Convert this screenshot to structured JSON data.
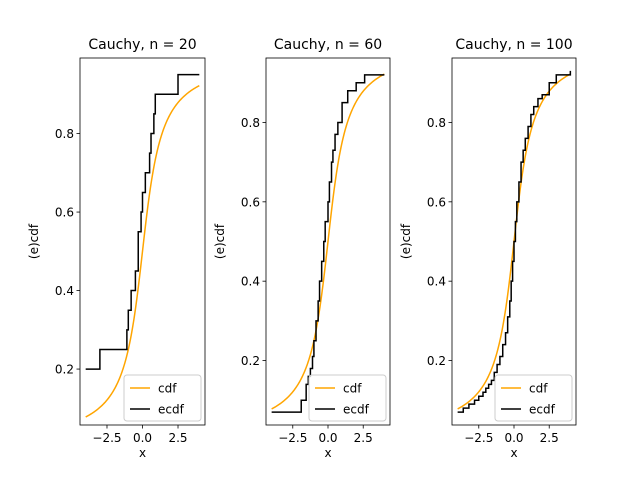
{
  "figure": {
    "background": "#ffffff",
    "colors": {
      "cdf": "#ffa500",
      "ecdf": "#000000",
      "axes": "#000000"
    }
  },
  "chart_data": [
    {
      "type": "line",
      "title": "Cauchy, n = 20",
      "xlabel": "x",
      "ylabel": "(e)cdf",
      "xlim": [
        -4.4,
        4.4
      ],
      "ylim": [
        0.0575,
        0.9925
      ],
      "xticks": [
        -2.5,
        0.0,
        2.5
      ],
      "xtick_labels": [
        "−2.5",
        "0.0",
        "2.5"
      ],
      "yticks": [
        0.2,
        0.4,
        0.6,
        0.8
      ],
      "ytick_labels": [
        "0.2",
        "0.4",
        "0.6",
        "0.8"
      ],
      "legend": {
        "position": "lower-right",
        "entries": [
          "cdf",
          "ecdf"
        ]
      },
      "grid": false,
      "cdf_x_range": [
        -4.0,
        4.0
      ],
      "ecdf": {
        "x": [
          -4.0,
          -3.0,
          -1.1,
          -1.0,
          -0.8,
          -0.5,
          -0.3,
          -0.1,
          0.0,
          0.2,
          0.5,
          0.6,
          0.8,
          0.9,
          2.5,
          4.0
        ],
        "y": [
          0.2,
          0.25,
          0.3,
          0.35,
          0.4,
          0.45,
          0.55,
          0.6,
          0.65,
          0.7,
          0.75,
          0.8,
          0.85,
          0.9,
          0.95,
          0.95
        ]
      }
    },
    {
      "type": "line",
      "title": "Cauchy, n = 60",
      "xlabel": "x",
      "ylabel": "(e)cdf",
      "xlim": [
        -4.4,
        4.4
      ],
      "ylim": [
        0.0375,
        0.9625
      ],
      "xticks": [
        -2.5,
        0.0,
        2.5
      ],
      "xtick_labels": [
        "−2.5",
        "0.0",
        "2.5"
      ],
      "yticks": [
        0.2,
        0.4,
        0.6,
        0.8
      ],
      "ytick_labels": [
        "0.2",
        "0.4",
        "0.6",
        "0.8"
      ],
      "legend": {
        "position": "lower-right",
        "entries": [
          "cdf",
          "ecdf"
        ]
      },
      "grid": false,
      "cdf_x_range": [
        -4.0,
        4.0
      ],
      "ecdf": {
        "x": [
          -4.0,
          -1.9,
          -1.55,
          -1.4,
          -1.25,
          -1.1,
          -1.0,
          -0.85,
          -0.7,
          -0.6,
          -0.45,
          -0.3,
          -0.2,
          0.0,
          0.1,
          0.25,
          0.35,
          0.5,
          0.7,
          1.0,
          1.4,
          2.0,
          2.6,
          4.0
        ],
        "y": [
          0.07,
          0.1,
          0.14,
          0.16,
          0.18,
          0.21,
          0.25,
          0.3,
          0.35,
          0.4,
          0.45,
          0.5,
          0.55,
          0.6,
          0.65,
          0.7,
          0.73,
          0.77,
          0.8,
          0.85,
          0.88,
          0.9,
          0.92,
          0.92
        ]
      }
    },
    {
      "type": "line",
      "title": "Cauchy, n = 100",
      "xlabel": "x",
      "ylabel": "(e)cdf",
      "xlim": [
        -4.4,
        4.4
      ],
      "ylim": [
        0.0375,
        0.9625
      ],
      "xticks": [
        -2.5,
        0.0,
        2.5
      ],
      "xtick_labels": [
        "−2.5",
        "0.0",
        "2.5"
      ],
      "yticks": [
        0.2,
        0.4,
        0.6,
        0.8
      ],
      "ytick_labels": [
        "0.2",
        "0.4",
        "0.6",
        "0.8"
      ],
      "legend": {
        "position": "lower-right",
        "entries": [
          "cdf",
          "ecdf"
        ]
      },
      "grid": false,
      "cdf_x_range": [
        -4.0,
        4.0
      ],
      "ecdf": {
        "x": [
          -4.0,
          -3.6,
          -3.2,
          -2.8,
          -2.5,
          -2.2,
          -2.0,
          -1.8,
          -1.6,
          -1.4,
          -1.2,
          -1.0,
          -0.8,
          -0.6,
          -0.45,
          -0.3,
          -0.2,
          -0.1,
          0.0,
          0.1,
          0.2,
          0.35,
          0.5,
          0.65,
          0.8,
          1.0,
          1.2,
          1.4,
          1.7,
          2.0,
          2.5,
          3.0,
          4.0
        ],
        "y": [
          0.07,
          0.08,
          0.09,
          0.1,
          0.11,
          0.12,
          0.13,
          0.14,
          0.15,
          0.17,
          0.19,
          0.21,
          0.24,
          0.27,
          0.31,
          0.35,
          0.4,
          0.45,
          0.5,
          0.55,
          0.6,
          0.65,
          0.7,
          0.73,
          0.76,
          0.79,
          0.82,
          0.84,
          0.86,
          0.87,
          0.9,
          0.92,
          0.93
        ]
      }
    }
  ]
}
